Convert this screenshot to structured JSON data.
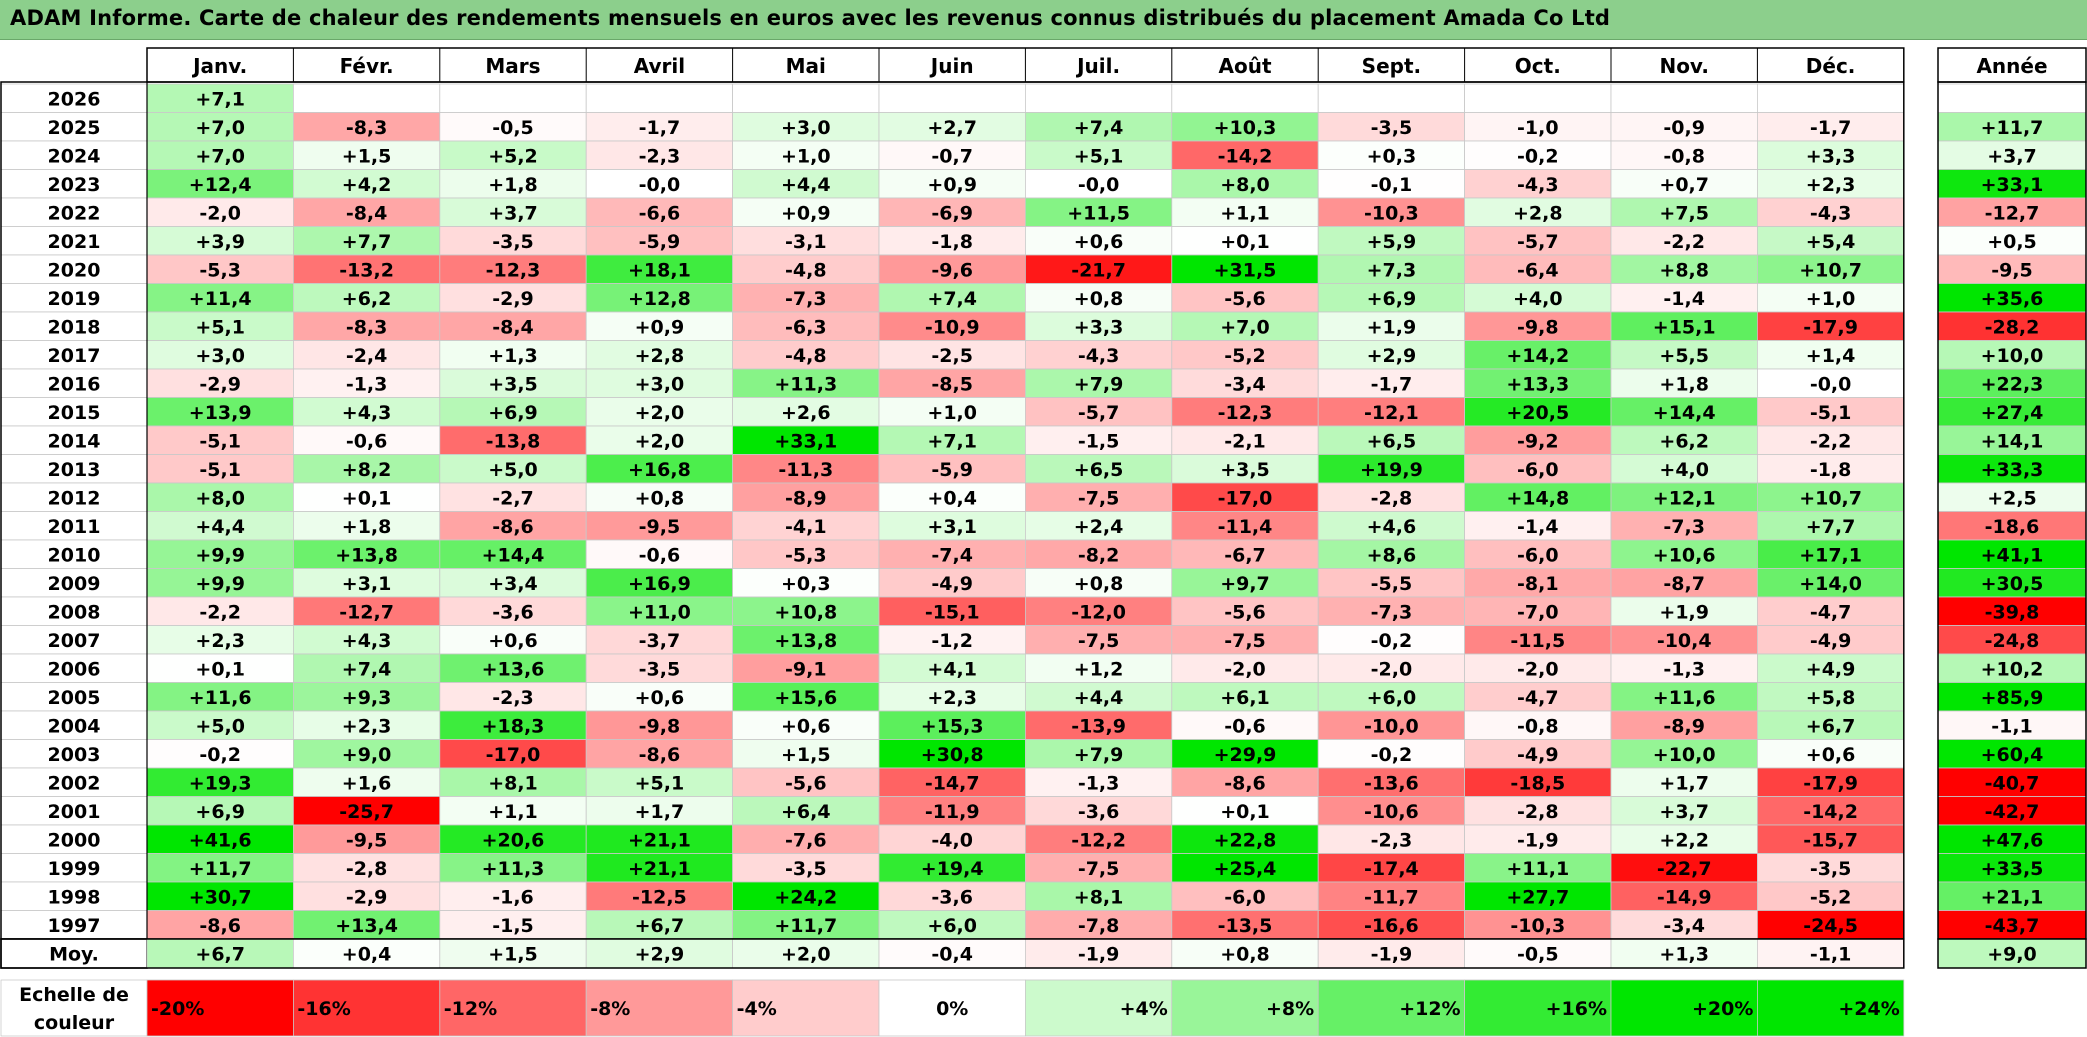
{
  "title": "ADAM Informe. Carte de chaleur des rendements mensuels en euros avec les revenus connus distribués du placement Amada Co Ltd",
  "chart_data": {
    "type": "heatmap",
    "title": "ADAM Informe. Carte de chaleur des rendements mensuels en euros avec les revenus connus distribués du placement Amada Co Ltd",
    "months": [
      "Janv.",
      "Févr.",
      "Mars",
      "Avril",
      "Mai",
      "Juin",
      "Juil.",
      "Août",
      "Sept.",
      "Oct.",
      "Nov.",
      "Déc."
    ],
    "year_column_label": "Année",
    "years": [
      "2026",
      "2025",
      "2024",
      "2023",
      "2022",
      "2021",
      "2020",
      "2019",
      "2018",
      "2017",
      "2016",
      "2015",
      "2014",
      "2013",
      "2012",
      "2011",
      "2010",
      "2009",
      "2008",
      "2007",
      "2006",
      "2005",
      "2004",
      "2003",
      "2002",
      "2001",
      "2000",
      "1999",
      "1998",
      "1997"
    ],
    "monthly": [
      [
        "+7,1",
        null,
        null,
        null,
        null,
        null,
        null,
        null,
        null,
        null,
        null,
        null
      ],
      [
        "+7,0",
        "-8,3",
        "-0,5",
        "-1,7",
        "+3,0",
        "+2,7",
        "+7,4",
        "+10,3",
        "-3,5",
        "-1,0",
        "-0,9",
        "-1,7"
      ],
      [
        "+7,0",
        "+1,5",
        "+5,2",
        "-2,3",
        "+1,0",
        "-0,7",
        "+5,1",
        "-14,2",
        "+0,3",
        "-0,2",
        "-0,8",
        "+3,3"
      ],
      [
        "+12,4",
        "+4,2",
        "+1,8",
        "-0,0",
        "+4,4",
        "+0,9",
        "-0,0",
        "+8,0",
        "-0,1",
        "-4,3",
        "+0,7",
        "+2,3"
      ],
      [
        "-2,0",
        "-8,4",
        "+3,7",
        "-6,6",
        "+0,9",
        "-6,9",
        "+11,5",
        "+1,1",
        "-10,3",
        "+2,8",
        "+7,5",
        "-4,3"
      ],
      [
        "+3,9",
        "+7,7",
        "-3,5",
        "-5,9",
        "-3,1",
        "-1,8",
        "+0,6",
        "+0,1",
        "+5,9",
        "-5,7",
        "-2,2",
        "+5,4"
      ],
      [
        "-5,3",
        "-13,2",
        "-12,3",
        "+18,1",
        "-4,8",
        "-9,6",
        "-21,7",
        "+31,5",
        "+7,3",
        "-6,4",
        "+8,8",
        "+10,7"
      ],
      [
        "+11,4",
        "+6,2",
        "-2,9",
        "+12,8",
        "-7,3",
        "+7,4",
        "+0,8",
        "-5,6",
        "+6,9",
        "+4,0",
        "-1,4",
        "+1,0"
      ],
      [
        "+5,1",
        "-8,3",
        "-8,4",
        "+0,9",
        "-6,3",
        "-10,9",
        "+3,3",
        "+7,0",
        "+1,9",
        "-9,8",
        "+15,1",
        "-17,9"
      ],
      [
        "+3,0",
        "-2,4",
        "+1,3",
        "+2,8",
        "-4,8",
        "-2,5",
        "-4,3",
        "-5,2",
        "+2,9",
        "+14,2",
        "+5,5",
        "+1,4"
      ],
      [
        "-2,9",
        "-1,3",
        "+3,5",
        "+3,0",
        "+11,3",
        "-8,5",
        "+7,9",
        "-3,4",
        "-1,7",
        "+13,3",
        "+1,8",
        "-0,0"
      ],
      [
        "+13,9",
        "+4,3",
        "+6,9",
        "+2,0",
        "+2,6",
        "+1,0",
        "-5,7",
        "-12,3",
        "-12,1",
        "+20,5",
        "+14,4",
        "-5,1"
      ],
      [
        "-5,1",
        "-0,6",
        "-13,8",
        "+2,0",
        "+33,1",
        "+7,1",
        "-1,5",
        "-2,1",
        "+6,5",
        "-9,2",
        "+6,2",
        "-2,2"
      ],
      [
        "-5,1",
        "+8,2",
        "+5,0",
        "+16,8",
        "-11,3",
        "-5,9",
        "+6,5",
        "+3,5",
        "+19,9",
        "-6,0",
        "+4,0",
        "-1,8"
      ],
      [
        "+8,0",
        "+0,1",
        "-2,7",
        "+0,8",
        "-8,9",
        "+0,4",
        "-7,5",
        "-17,0",
        "-2,8",
        "+14,8",
        "+12,1",
        "+10,7"
      ],
      [
        "+4,4",
        "+1,8",
        "-8,6",
        "-9,5",
        "-4,1",
        "+3,1",
        "+2,4",
        "-11,4",
        "+4,6",
        "-1,4",
        "-7,3",
        "+7,7"
      ],
      [
        "+9,9",
        "+13,8",
        "+14,4",
        "-0,6",
        "-5,3",
        "-7,4",
        "-8,2",
        "-6,7",
        "+8,6",
        "-6,0",
        "+10,6",
        "+17,1"
      ],
      [
        "+9,9",
        "+3,1",
        "+3,4",
        "+16,9",
        "+0,3",
        "-4,9",
        "+0,8",
        "+9,7",
        "-5,5",
        "-8,1",
        "-8,7",
        "+14,0"
      ],
      [
        "-2,2",
        "-12,7",
        "-3,6",
        "+11,0",
        "+10,8",
        "-15,1",
        "-12,0",
        "-5,6",
        "-7,3",
        "-7,0",
        "+1,9",
        "-4,7"
      ],
      [
        "+2,3",
        "+4,3",
        "+0,6",
        "-3,7",
        "+13,8",
        "-1,2",
        "-7,5",
        "-7,5",
        "-0,2",
        "-11,5",
        "-10,4",
        "-4,9"
      ],
      [
        "+0,1",
        "+7,4",
        "+13,6",
        "-3,5",
        "-9,1",
        "+4,1",
        "+1,2",
        "-2,0",
        "-2,0",
        "-2,0",
        "-1,3",
        "+4,9"
      ],
      [
        "+11,6",
        "+9,3",
        "-2,3",
        "+0,6",
        "+15,6",
        "+2,3",
        "+4,4",
        "+6,1",
        "+6,0",
        "-4,7",
        "+11,6",
        "+5,8"
      ],
      [
        "+5,0",
        "+2,3",
        "+18,3",
        "-9,8",
        "+0,6",
        "+15,3",
        "-13,9",
        "-0,6",
        "-10,0",
        "-0,8",
        "-8,9",
        "+6,7"
      ],
      [
        "-0,2",
        "+9,0",
        "-17,0",
        "-8,6",
        "+1,5",
        "+30,8",
        "+7,9",
        "+29,9",
        "-0,2",
        "-4,9",
        "+10,0",
        "+0,6"
      ],
      [
        "+19,3",
        "+1,6",
        "+8,1",
        "+5,1",
        "-5,6",
        "-14,7",
        "-1,3",
        "-8,6",
        "-13,6",
        "-18,5",
        "+1,7",
        "-17,9"
      ],
      [
        "+6,9",
        "-25,7",
        "+1,1",
        "+1,7",
        "+6,4",
        "-11,9",
        "-3,6",
        "+0,1",
        "-10,6",
        "-2,8",
        "+3,7",
        "-14,2"
      ],
      [
        "+41,6",
        "-9,5",
        "+20,6",
        "+21,1",
        "-7,6",
        "-4,0",
        "-12,2",
        "+22,8",
        "-2,3",
        "-1,9",
        "+2,2",
        "-15,7"
      ],
      [
        "+11,7",
        "-2,8",
        "+11,3",
        "+21,1",
        "-3,5",
        "+19,4",
        "-7,5",
        "+25,4",
        "-17,4",
        "+11,1",
        "-22,7",
        "-3,5"
      ],
      [
        "+30,7",
        "-2,9",
        "-1,6",
        "-12,5",
        "+24,2",
        "-3,6",
        "+8,1",
        "-6,0",
        "-11,7",
        "+27,7",
        "-14,9",
        "-5,2"
      ],
      [
        "-8,6",
        "+13,4",
        "-1,5",
        "+6,7",
        "+11,7",
        "+6,0",
        "-7,8",
        "-13,5",
        "-16,6",
        "-10,3",
        "-3,4",
        "-24,5"
      ]
    ],
    "annual": [
      "",
      "+11,7",
      "+3,7",
      "+33,1",
      "-12,7",
      "+0,5",
      "-9,5",
      "+35,6",
      "-28,2",
      "+10,0",
      "+22,3",
      "+27,4",
      "+14,1",
      "+33,3",
      "+2,5",
      "-18,6",
      "+41,1",
      "+30,5",
      "-39,8",
      "-24,8",
      "+10,2",
      "+85,9",
      "-1,1",
      "+60,4",
      "-40,7",
      "-42,7",
      "+47,6",
      "+33,5",
      "+21,1",
      "-43,7"
    ],
    "average_label": "Moy.",
    "average_monthly": [
      "+6,7",
      "+0,4",
      "+1,5",
      "+2,9",
      "+2,0",
      "-0,4",
      "-1,9",
      "+0,8",
      "-1,9",
      "-0,5",
      "+1,3",
      "-1,1"
    ],
    "average_annual": "+9,0",
    "scale_label_line1": "Echelle de",
    "scale_label_line2": "couleur",
    "scale": [
      "-20%",
      "-16%",
      "-12%",
      "-8%",
      "-4%",
      "0%",
      "+4%",
      "+8%",
      "+12%",
      "+16%",
      "+20%",
      "+24%"
    ],
    "colors": {
      "negative_max": "#ff0000",
      "positive_max": "#00e600",
      "neutral": "#ffffff",
      "title_background": "#8ccf8c"
    }
  }
}
